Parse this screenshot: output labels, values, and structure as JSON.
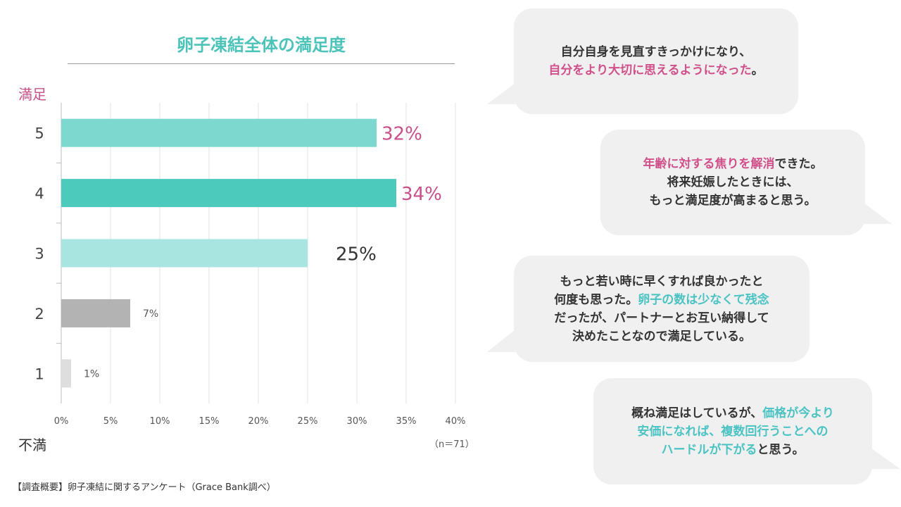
{
  "chart_data": {
    "type": "bar",
    "orientation": "horizontal",
    "title": "卵子凍結全体の満足度",
    "categories": [
      "5",
      "4",
      "3",
      "2",
      "1"
    ],
    "values": [
      32,
      34,
      25,
      7,
      1
    ],
    "value_labels": [
      "32%",
      "34%",
      "25%",
      "7%",
      "1%"
    ],
    "bar_colors": [
      "#7dd8cf",
      "#4ccabc",
      "#a8e5e0",
      "#b3b3b3",
      "#dedede"
    ],
    "label_colors": [
      "#c8508a",
      "#c8508a",
      "#333333",
      "#555555",
      "#555555"
    ],
    "xlim": [
      0,
      40
    ],
    "x_ticks": [
      "0%",
      "5%",
      "10%",
      "15%",
      "20%",
      "25%",
      "30%",
      "35%",
      "40%"
    ],
    "y_top_label": "満足",
    "y_bottom_label": "不満",
    "sample_size": "（n＝71）",
    "grid": true
  },
  "footnote": "【調査概要】卵子凍結に関するアンケート（Grace Bank調べ）",
  "comments": [
    {
      "lines": [
        [
          {
            "text": "自分自身を見直すきっかけになり、",
            "hl": ""
          }
        ],
        [
          {
            "text": "自分をより大切に思えるようになった",
            "hl": "pink"
          },
          {
            "text": "。",
            "hl": ""
          }
        ]
      ]
    },
    {
      "lines": [
        [
          {
            "text": "年齢に対する焦りを解消",
            "hl": "pink"
          },
          {
            "text": "できた。",
            "hl": ""
          }
        ],
        [
          {
            "text": "将来妊娠したときには、",
            "hl": ""
          }
        ],
        [
          {
            "text": "もっと満足度が高まると思う。",
            "hl": ""
          }
        ]
      ]
    },
    {
      "lines": [
        [
          {
            "text": "もっと若い時に早くすれば良かったと",
            "hl": ""
          }
        ],
        [
          {
            "text": "何度も思った。",
            "hl": ""
          },
          {
            "text": "卵子の数は少なくて残念",
            "hl": "teal"
          }
        ],
        [
          {
            "text": "だったが、パートナーとお互い納得して",
            "hl": ""
          }
        ],
        [
          {
            "text": "決めたことなので満足している。",
            "hl": ""
          }
        ]
      ]
    },
    {
      "lines": [
        [
          {
            "text": "概ね満足はしているが、",
            "hl": ""
          },
          {
            "text": "価格が今より",
            "hl": "teal"
          }
        ],
        [
          {
            "text": "安価になれば、複数回行うことへの",
            "hl": "teal"
          }
        ],
        [
          {
            "text": "ハードルが下がる",
            "hl": "teal"
          },
          {
            "text": "と思う。",
            "hl": ""
          }
        ]
      ]
    }
  ]
}
